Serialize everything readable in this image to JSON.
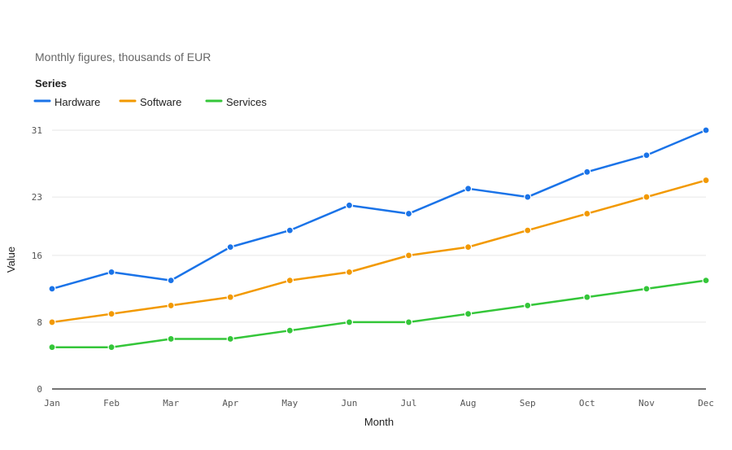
{
  "chart_data": {
    "type": "line",
    "subtitle": "Monthly figures, thousands of EUR",
    "legend_title": "Series",
    "legend_position": "top-left",
    "xlabel": "Month",
    "ylabel": "Value",
    "categories": [
      "Jan",
      "Feb",
      "Mar",
      "Apr",
      "May",
      "Jun",
      "Jul",
      "Aug",
      "Sep",
      "Oct",
      "Nov",
      "Dec"
    ],
    "ylim": [
      0,
      31
    ],
    "yticks": [
      0,
      8,
      16,
      23,
      31
    ],
    "grid": true,
    "series": [
      {
        "name": "Hardware",
        "color": "#1a73e8",
        "values": [
          12,
          14,
          13,
          17,
          19,
          22,
          21,
          24,
          23,
          26,
          28,
          31
        ]
      },
      {
        "name": "Software",
        "color": "#f29900",
        "values": [
          8,
          9,
          10,
          11,
          13,
          14,
          16,
          17,
          19,
          21,
          23,
          25
        ]
      },
      {
        "name": "Services",
        "color": "#34c639",
        "values": [
          5,
          5,
          6,
          6,
          7,
          8,
          8,
          9,
          10,
          11,
          12,
          13
        ]
      }
    ]
  }
}
